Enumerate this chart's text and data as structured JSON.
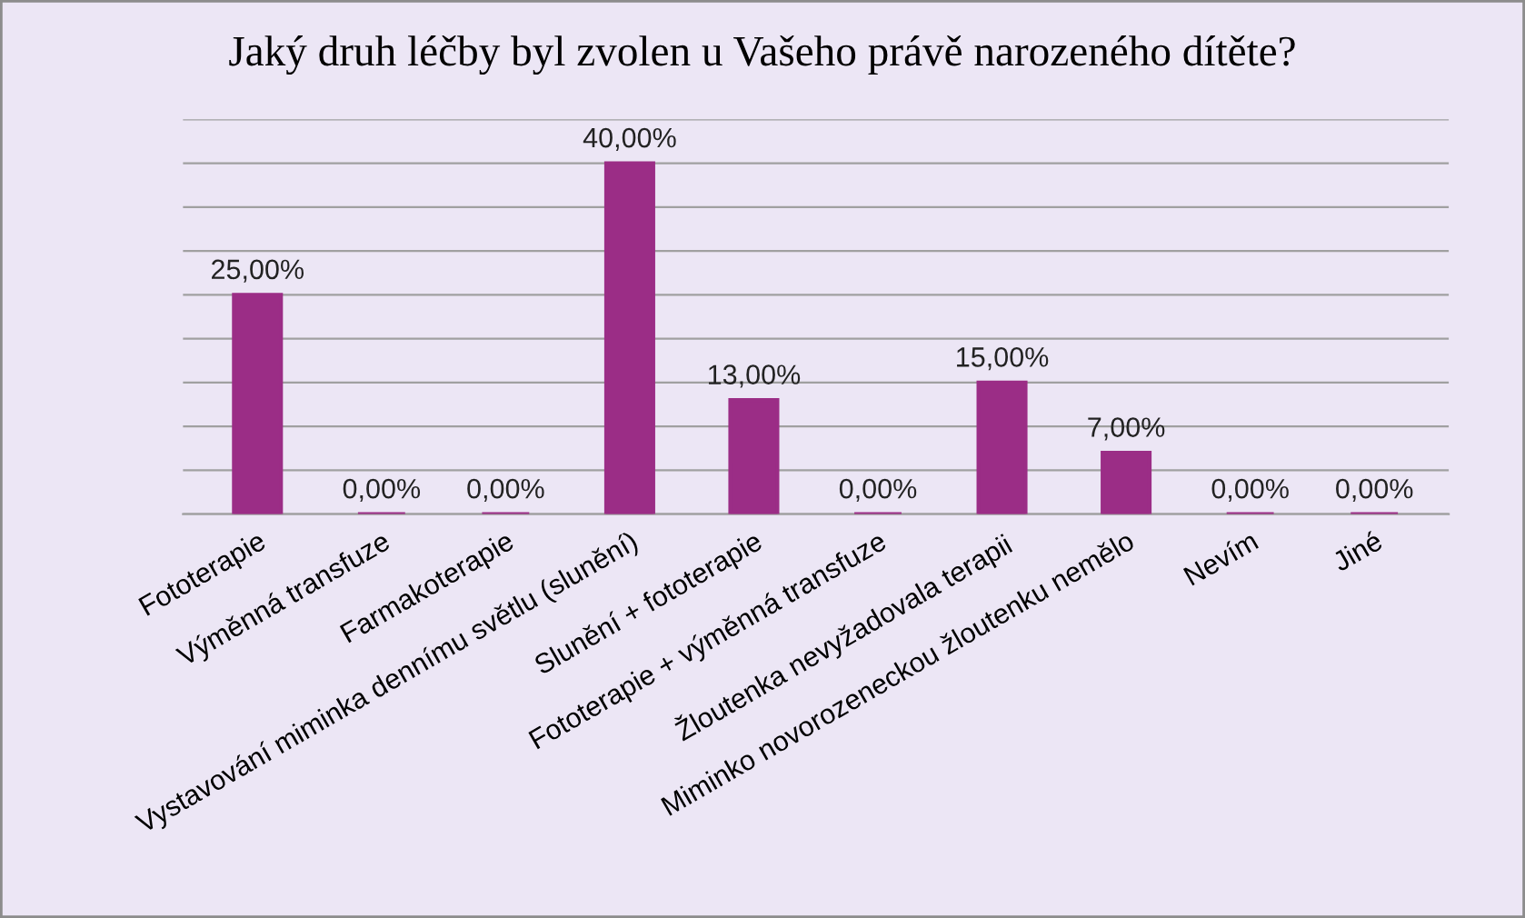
{
  "chart_data": {
    "type": "bar",
    "title": "Jaký druh léčby byl zvolen u Vašeho právě narozeného dítěte?",
    "categories": [
      "Fototerapie",
      "Výměnná transfuze",
      "Farmakoterapie",
      "Vystavování miminka dennímu světlu (slunění)",
      "Slunění + fototerapie",
      "Fototerapie + výměnná transfuze",
      "Žloutenka nevyžadovala terapii",
      "Miminko novorozeneckou žloutenku nemělo",
      "Nevím",
      "Jiné"
    ],
    "values": [
      25,
      0,
      0,
      40,
      13,
      0,
      15,
      7,
      0,
      0
    ],
    "value_labels": [
      "25,00%",
      "0,00%",
      "0,00%",
      "40,00%",
      "13,00%",
      "0,00%",
      "15,00%",
      "7,00%",
      "0,00%",
      "0,00%"
    ],
    "color": "#9b2d86",
    "ylim": [
      0,
      45
    ],
    "yticks": [
      {
        "value": 0,
        "label": null
      },
      {
        "value": 5,
        "label": null
      },
      {
        "value": 10,
        "label": null
      },
      {
        "value": 15,
        "label": null
      },
      {
        "value": 20,
        "label": null
      },
      {
        "value": 25,
        "label": null
      },
      {
        "value": 30,
        "label": null
      },
      {
        "value": 35,
        "label": null
      },
      {
        "value": 40,
        "label": null
      },
      {
        "value": 45,
        "label": null
      }
    ],
    "grid": "y",
    "tick_labels": "x"
  }
}
